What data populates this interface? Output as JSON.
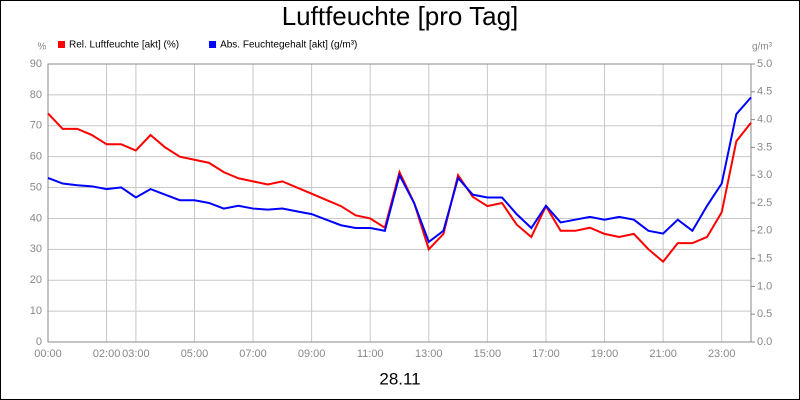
{
  "chart_data": {
    "type": "line",
    "title": "Luftfeuchte [pro Tag]",
    "xlabel": "28.11",
    "ylabel": "%",
    "y2label": "g/m³",
    "x": [
      0,
      0.5,
      1,
      1.5,
      2,
      2.5,
      3,
      3.5,
      4,
      4.5,
      5,
      5.5,
      6,
      6.5,
      7,
      7.5,
      8,
      8.5,
      9,
      9.5,
      10,
      10.5,
      11,
      11.5,
      12,
      12.5,
      13,
      13.5,
      14,
      14.5,
      15,
      15.5,
      16,
      16.5,
      17,
      17.5,
      18,
      18.5,
      19,
      19.5,
      20,
      20.5,
      21,
      21.5,
      22,
      22.5,
      23,
      23.5,
      24
    ],
    "xlim": [
      0,
      24
    ],
    "xticks": [
      {
        "value": 0,
        "label": "00:00"
      },
      {
        "value": 2,
        "label": "02:00"
      },
      {
        "value": 3,
        "label": "03:00"
      },
      {
        "value": 5,
        "label": "05:00"
      },
      {
        "value": 7,
        "label": "07:00"
      },
      {
        "value": 9,
        "label": "09:00"
      },
      {
        "value": 11,
        "label": "11:00"
      },
      {
        "value": 13,
        "label": "13:00"
      },
      {
        "value": 15,
        "label": "15:00"
      },
      {
        "value": 17,
        "label": "17:00"
      },
      {
        "value": 19,
        "label": "19:00"
      },
      {
        "value": 21,
        "label": "21:00"
      },
      {
        "value": 23,
        "label": "23:00"
      }
    ],
    "ylim": [
      0,
      90
    ],
    "yticks": [
      0,
      10,
      20,
      30,
      40,
      50,
      60,
      70,
      80,
      90
    ],
    "y2lim": [
      0,
      5
    ],
    "y2ticks": [
      {
        "value": 0,
        "label": "0.0"
      },
      {
        "value": 0.5,
        "label": "0.5"
      },
      {
        "value": 1,
        "label": "1.0"
      },
      {
        "value": 1.5,
        "label": "1.5"
      },
      {
        "value": 2,
        "label": "2.0"
      },
      {
        "value": 2.5,
        "label": "2.5"
      },
      {
        "value": 3,
        "label": "3.0"
      },
      {
        "value": 3.5,
        "label": "3.5"
      },
      {
        "value": 4,
        "label": "4.0"
      },
      {
        "value": 4.5,
        "label": "4.5"
      },
      {
        "value": 5,
        "label": "5.0"
      }
    ],
    "grid": true,
    "series": [
      {
        "name": "Rel. Luftfeuchte [akt] (%)",
        "color": "#ff0000",
        "values": [
          74,
          69,
          69,
          67,
          64,
          64,
          62,
          67,
          63,
          60,
          59,
          58,
          55,
          53,
          52,
          51,
          52,
          50,
          48,
          46,
          44,
          41,
          40,
          37,
          55,
          45,
          30,
          35,
          54,
          47,
          44,
          45,
          38,
          34,
          44,
          36,
          36,
          37,
          35,
          34,
          35,
          30,
          26,
          32,
          32,
          34,
          42,
          65,
          71
        ]
      },
      {
        "name": "Abs. Feuchtegehalt [akt] (g/m³)",
        "color": "#0000ff",
        "axis": "y2",
        "values": [
          2.95,
          2.85,
          2.82,
          2.8,
          2.75,
          2.78,
          2.6,
          2.75,
          2.65,
          2.55,
          2.55,
          2.5,
          2.4,
          2.45,
          2.4,
          2.38,
          2.4,
          2.35,
          2.3,
          2.2,
          2.1,
          2.05,
          2.05,
          2.0,
          3.0,
          2.5,
          1.8,
          2.0,
          2.95,
          2.65,
          2.6,
          2.6,
          2.3,
          2.05,
          2.45,
          2.15,
          2.2,
          2.25,
          2.2,
          2.25,
          2.2,
          2.0,
          1.95,
          2.2,
          2.0,
          2.45,
          2.85,
          4.1,
          4.4
        ]
      }
    ]
  }
}
